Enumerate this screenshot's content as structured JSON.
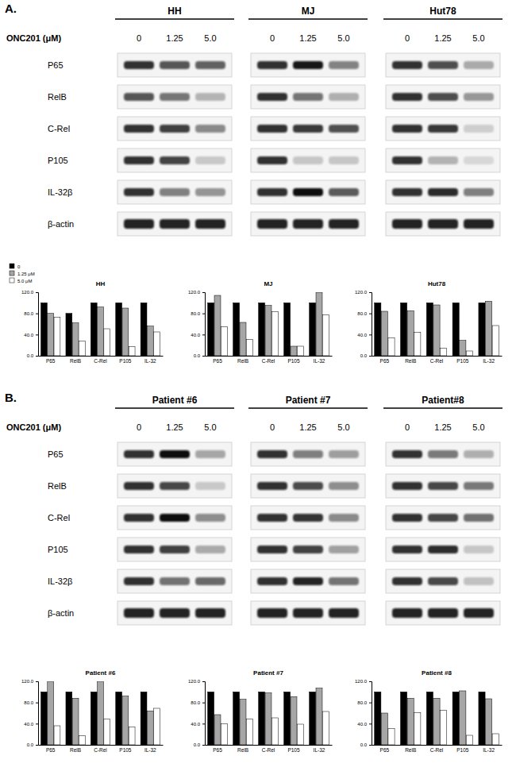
{
  "panels": [
    {
      "label": "A.",
      "treatment_label": "ONC201 (μM)",
      "doses": [
        "0",
        "1.25",
        "5.0"
      ],
      "groups": [
        "HH",
        "MJ",
        "Hut78"
      ],
      "proteins": [
        "P65",
        "RelB",
        "C-Rel",
        "P105",
        "IL-32β",
        "β-actin"
      ]
    },
    {
      "label": "B.",
      "treatment_label": "ONC201 (μM)",
      "doses": [
        "0",
        "1.25",
        "5.0"
      ],
      "groups": [
        "Patient #6",
        "Patient #7",
        "Patient#8"
      ],
      "proteins": [
        "P65",
        "RelB",
        "C-Rel",
        "P105",
        "IL-32β",
        "β-actin"
      ]
    }
  ],
  "chart_data": [
    {
      "type": "bar",
      "title": "HH",
      "categories": [
        "P65",
        "RelB",
        "C-Rel",
        "P105",
        "IL-32"
      ],
      "series": [
        {
          "name": "0",
          "color": "#000000",
          "values": [
            100,
            80,
            100,
            100,
            100
          ]
        },
        {
          "name": "1.25 μM",
          "color": "#a6a6a6",
          "values": [
            80,
            62,
            92,
            90,
            56
          ]
        },
        {
          "name": "5.0 μM",
          "color": "#ffffff",
          "values": [
            73,
            28,
            51,
            17,
            45
          ]
        }
      ],
      "ylim": [
        0,
        120
      ],
      "yticks": [
        {
          "value": 0,
          "label": "0.0"
        },
        {
          "value": 40,
          "label": "40.0"
        },
        {
          "value": 80,
          "label": "80.0"
        },
        {
          "value": 120,
          "label": "120.0"
        }
      ],
      "grid": false,
      "legend": "top-left"
    },
    {
      "type": "bar",
      "title": "MJ",
      "categories": [
        "P65",
        "RelB",
        "C-Rel",
        "P105",
        "IL-32"
      ],
      "series": [
        {
          "color": "#000000",
          "values": [
            100,
            100,
            100,
            100,
            100
          ]
        },
        {
          "color": "#a6a6a6",
          "values": [
            114,
            63,
            95,
            18,
            119
          ]
        },
        {
          "color": "#ffffff",
          "values": [
            55,
            31,
            83,
            18,
            77
          ]
        }
      ],
      "ylim": [
        0,
        120
      ],
      "yticks": [
        {
          "value": 0,
          "label": "0.0"
        },
        {
          "value": 40,
          "label": "40.0"
        },
        {
          "value": 80,
          "label": "80.0"
        },
        {
          "value": 120,
          "label": "120.0"
        }
      ],
      "grid": false
    },
    {
      "type": "bar",
      "title": "Hut78",
      "categories": [
        "P65",
        "RelB",
        "C-Rel",
        "P105",
        "IL-32"
      ],
      "series": [
        {
          "color": "#000000",
          "values": [
            100,
            100,
            100,
            100,
            100
          ]
        },
        {
          "color": "#a6a6a6",
          "values": [
            84,
            85,
            96,
            29,
            103
          ]
        },
        {
          "color": "#ffffff",
          "values": [
            34,
            44,
            14,
            9,
            57
          ]
        }
      ],
      "ylim": [
        0,
        120
      ],
      "yticks": [
        {
          "value": 0,
          "label": "0.0"
        },
        {
          "value": 40,
          "label": "40.0"
        },
        {
          "value": 80,
          "label": "80.0"
        },
        {
          "value": 120,
          "label": "120.0"
        }
      ],
      "grid": false
    },
    {
      "type": "bar",
      "title": "Patient #6",
      "categories": [
        "P65",
        "RelB",
        "C-Rel",
        "P105",
        "IL-32"
      ],
      "series": [
        {
          "color": "#000000",
          "values": [
            100,
            100,
            100,
            100,
            100
          ]
        },
        {
          "color": "#a6a6a6",
          "values": [
            120,
            88,
            120,
            92,
            64
          ]
        },
        {
          "color": "#ffffff",
          "values": [
            36,
            17,
            49,
            34,
            69
          ]
        }
      ],
      "ylim": [
        0,
        120
      ],
      "yticks": [
        {
          "value": 0,
          "label": "0.0"
        },
        {
          "value": 40,
          "label": "40.0"
        },
        {
          "value": 80,
          "label": "80.0"
        },
        {
          "value": 120,
          "label": "120.0"
        }
      ],
      "grid": false
    },
    {
      "type": "bar",
      "title": "Patient #7",
      "categories": [
        "P65",
        "RelB",
        "C-Rel",
        "P105",
        "IL-32"
      ],
      "series": [
        {
          "color": "#000000",
          "values": [
            100,
            100,
            100,
            100,
            100
          ]
        },
        {
          "color": "#a6a6a6",
          "values": [
            57,
            86,
            98,
            91,
            107
          ]
        },
        {
          "color": "#ffffff",
          "values": [
            40,
            49,
            51,
            39,
            63
          ]
        }
      ],
      "ylim": [
        0,
        120
      ],
      "yticks": [
        {
          "value": 0,
          "label": "0.0"
        },
        {
          "value": 40,
          "label": "40.0"
        },
        {
          "value": 80,
          "label": "80.0"
        },
        {
          "value": 120,
          "label": "120.0"
        }
      ],
      "grid": false
    },
    {
      "type": "bar",
      "title": "Patient #8",
      "categories": [
        "P65",
        "RelB",
        "C-Rel",
        "P105",
        "IL-32"
      ],
      "series": [
        {
          "color": "#000000",
          "values": [
            100,
            100,
            100,
            100,
            100
          ]
        },
        {
          "color": "#a6a6a6",
          "values": [
            60,
            88,
            88,
            102,
            87
          ]
        },
        {
          "color": "#ffffff",
          "values": [
            31,
            61,
            65,
            18,
            21
          ]
        }
      ],
      "ylim": [
        0,
        120
      ],
      "yticks": [
        {
          "value": 0,
          "label": "0.0"
        },
        {
          "value": 40,
          "label": "40.0"
        },
        {
          "value": 80,
          "label": "80.0"
        },
        {
          "value": 120,
          "label": "120.0"
        }
      ],
      "grid": false
    }
  ]
}
